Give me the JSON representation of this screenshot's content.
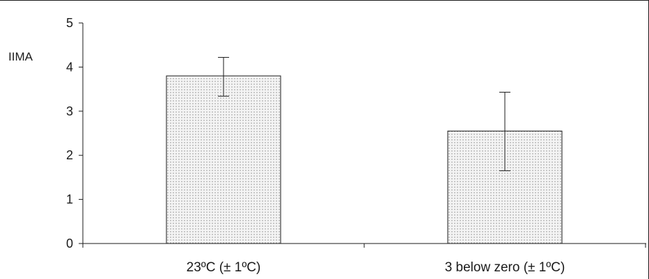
{
  "chart_data": {
    "type": "bar",
    "title": "",
    "xlabel": "",
    "ylabel": "IIMA",
    "ylim": [
      0,
      5
    ],
    "yticks": [
      0,
      1,
      2,
      3,
      4,
      5
    ],
    "yticks_labels": [
      "0",
      "1",
      "2",
      "3",
      "4",
      "5"
    ],
    "grid": false,
    "legend": "none",
    "categories": [
      "23ºC (± 1ºC)",
      "3 below zero (± 1ºC)"
    ],
    "values": [
      3.8,
      2.55
    ],
    "error_upper": [
      4.22,
      3.43
    ],
    "error_lower": [
      3.34,
      1.65
    ]
  },
  "colors": {
    "bar_fill": "#f4f4f4",
    "bar_dots": "#6a6a6a",
    "bar_stroke": "#1a1a1a",
    "axis": "#1a1a1a",
    "frame": "#1a1a1a"
  }
}
